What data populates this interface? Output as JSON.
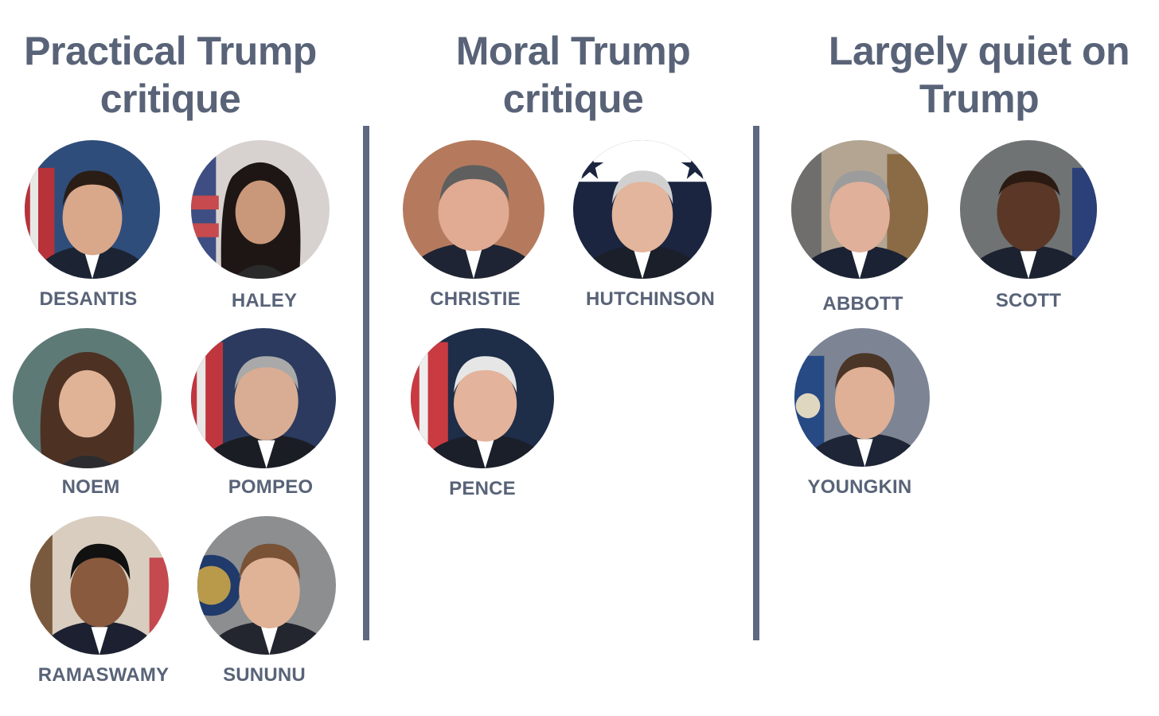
{
  "columns": [
    {
      "title_line1": "Practical Trump",
      "title_line2": "critique",
      "people": [
        "DESANTIS",
        "HALEY",
        "NOEM",
        "POMPEO",
        "RAMASWAMY",
        "SUNUNU"
      ]
    },
    {
      "title_line1": "Moral Trump",
      "title_line2": "critique",
      "people": [
        "CHRISTIE",
        "HUTCHINSON",
        "PENCE"
      ]
    },
    {
      "title_line1": "Largely quiet on",
      "title_line2": "Trump",
      "people": [
        "ABBOTT",
        "SCOTT",
        "YOUNGKIN"
      ]
    }
  ],
  "colors": {
    "text": "#596378",
    "divider": "#5e6880"
  }
}
